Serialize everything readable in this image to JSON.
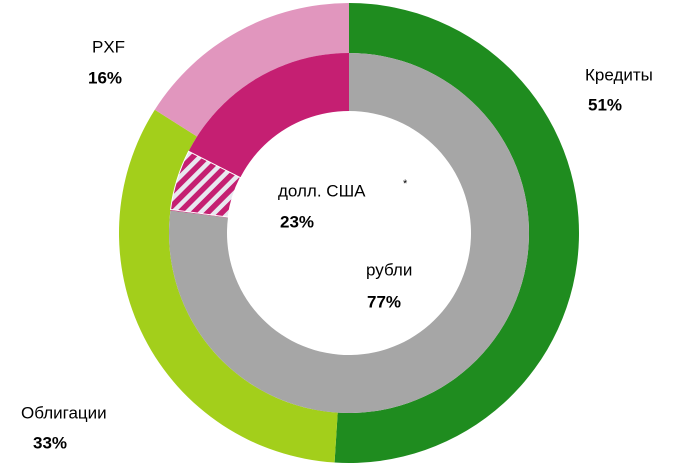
{
  "chart_data": [
    {
      "type": "donut",
      "categories": [
        "Кредиты",
        "Облигации",
        "PXF"
      ],
      "values": [
        51,
        33,
        16
      ],
      "value_labels": [
        "51%",
        "33%",
        "16%"
      ],
      "colors": [
        "#1f8c1f",
        "#a3cf1b",
        "#e196be"
      ]
    },
    {
      "type": "donut",
      "categories": [
        "рубли",
        "долл. США"
      ],
      "values": [
        77,
        23
      ],
      "value_labels": [
        "77%",
        "23%"
      ],
      "colors": [
        "#a6a6a6",
        "#c51f72"
      ],
      "footnote_mark": "*"
    }
  ]
}
